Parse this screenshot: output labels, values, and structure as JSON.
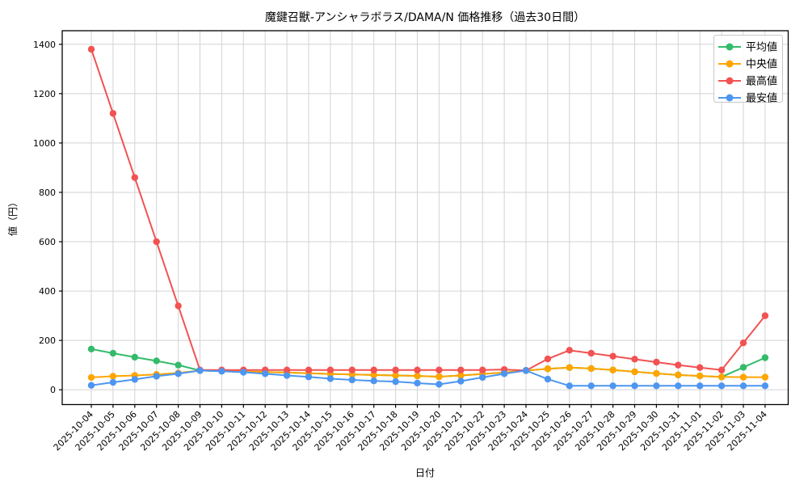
{
  "chart_data": {
    "type": "line",
    "title": "魔鍵召獣-アンシャラボラス/DAMA/N 価格推移（過去30日間）",
    "xlabel": "日付",
    "ylabel": "値（円）",
    "x": [
      "2025-10-04",
      "2025-10-05",
      "2025-10-06",
      "2025-10-07",
      "2025-10-08",
      "2025-10-09",
      "2025-10-10",
      "2025-10-11",
      "2025-10-12",
      "2025-10-13",
      "2025-10-14",
      "2025-10-15",
      "2025-10-16",
      "2025-10-17",
      "2025-10-18",
      "2025-10-19",
      "2025-10-20",
      "2025-10-21",
      "2025-10-22",
      "2025-10-23",
      "2025-10-24",
      "2025-10-25",
      "2025-10-26",
      "2025-10-27",
      "2025-10-28",
      "2025-10-29",
      "2025-10-30",
      "2025-10-31",
      "2025-11-01",
      "2025-11-02",
      "2025-11-03",
      "2025-11-04"
    ],
    "series": [
      {
        "name": "平均値",
        "color": "#34bb6a",
        "values": [
          165,
          148,
          132,
          117,
          100,
          78,
          76,
          74,
          72,
          70,
          67,
          64,
          62,
          60,
          58,
          56,
          53,
          58,
          64,
          70,
          78,
          85,
          90,
          86,
          80,
          73,
          66,
          60,
          56,
          52,
          91,
          130
        ]
      },
      {
        "name": "中央値",
        "color": "#ffa500",
        "values": [
          50,
          55,
          58,
          62,
          68,
          78,
          76,
          74,
          72,
          70,
          67,
          64,
          62,
          60,
          58,
          56,
          53,
          58,
          64,
          70,
          78,
          85,
          90,
          86,
          80,
          73,
          66,
          60,
          56,
          52,
          51,
          51
        ]
      },
      {
        "name": "最高値",
        "color": "#f25252",
        "values": [
          1380,
          1120,
          860,
          600,
          340,
          80,
          80,
          80,
          80,
          80,
          80,
          80,
          80,
          80,
          80,
          80,
          80,
          80,
          80,
          82,
          78,
          125,
          160,
          148,
          136,
          124,
          112,
          100,
          90,
          80,
          190,
          300
        ]
      },
      {
        "name": "最安値",
        "color": "#4d96f0",
        "values": [
          18,
          30,
          42,
          55,
          65,
          78,
          75,
          71,
          65,
          58,
          52,
          45,
          40,
          36,
          33,
          27,
          22,
          35,
          50,
          65,
          78,
          43,
          16,
          16,
          16,
          16,
          16,
          16,
          16,
          16,
          16,
          16
        ]
      }
    ],
    "ylim": [
      -60,
      1455
    ],
    "yticks": [
      0,
      200,
      400,
      600,
      800,
      1000,
      1200,
      1400
    ],
    "grid": true,
    "grid_color": "#d3d3d3",
    "spine_color": "#000000",
    "legend_position": "upper right"
  }
}
